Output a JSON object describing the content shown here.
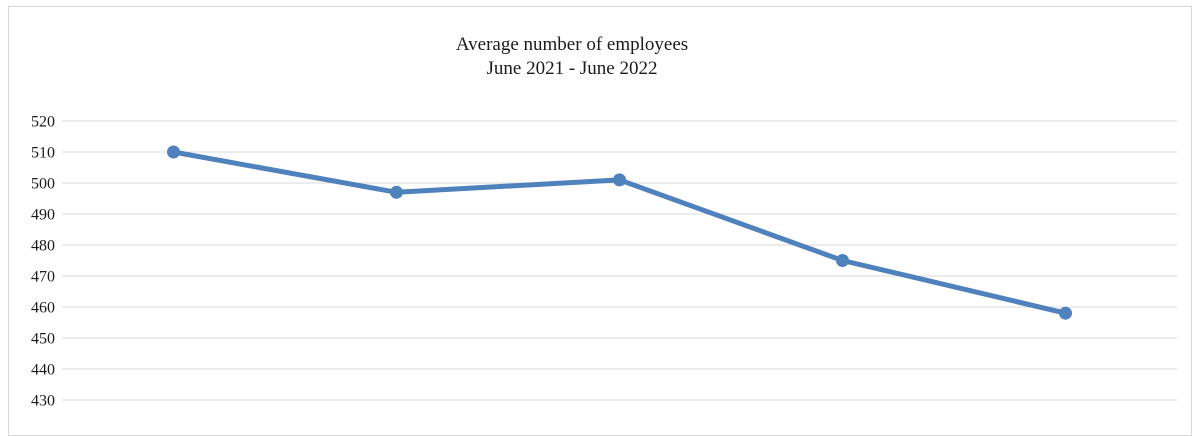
{
  "chart_data": {
    "type": "line",
    "title": "Average number of employees",
    "subtitle": "June 2021  -  June 2022",
    "xlabel": "",
    "ylabel": "",
    "x": [
      "",
      "",
      "",
      "",
      ""
    ],
    "series": [
      {
        "values": [
          510,
          497,
          501,
          475,
          458
        ],
        "color": "#4f81bd"
      }
    ],
    "ylim": [
      430,
      520
    ],
    "yticks": [
      520,
      510,
      500,
      490,
      480,
      470,
      460,
      450,
      440,
      430
    ],
    "grid": true,
    "legend": "none"
  }
}
